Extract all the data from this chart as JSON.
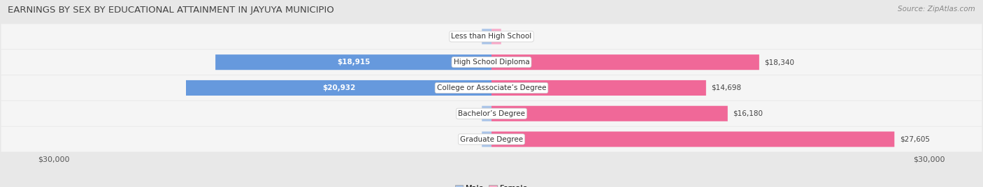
{
  "title": "EARNINGS BY SEX BY EDUCATIONAL ATTAINMENT IN JAYUYA MUNICIPIO",
  "source": "Source: ZipAtlas.com",
  "categories": [
    "Less than High School",
    "High School Diploma",
    "College or Associate’s Degree",
    "Bachelor’s Degree",
    "Graduate Degree"
  ],
  "male_values": [
    0,
    18915,
    20932,
    0,
    0
  ],
  "female_values": [
    0,
    18340,
    14698,
    16180,
    27605
  ],
  "male_color": "#aac4e8",
  "male_bar_color": "#6699dd",
  "female_color": "#f8aac8",
  "female_bar_color": "#f06898",
  "xlim": 30000,
  "bg_color": "#e8e8e8",
  "row_bg_color": "#f5f5f5",
  "title_fontsize": 9.5,
  "source_fontsize": 7.5,
  "bar_label_fontsize": 7.5,
  "category_fontsize": 7.5,
  "axis_label_fontsize": 8
}
